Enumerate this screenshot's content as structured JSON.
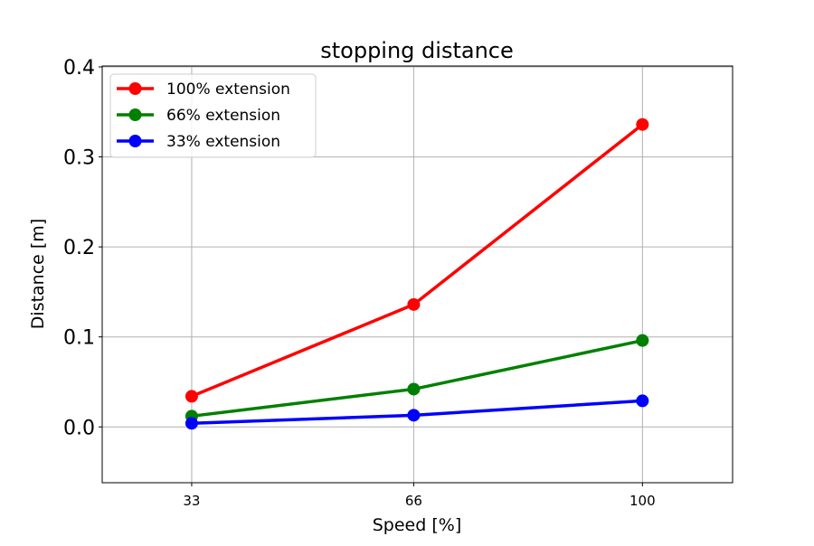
{
  "chart_data": {
    "type": "line",
    "title": "stopping distance",
    "xlabel": "Speed [%]",
    "ylabel": "Distance [m]",
    "x": [
      33,
      66,
      100
    ],
    "xticks": [
      "33",
      "66",
      "100"
    ],
    "yticks": [
      "0.0",
      "0.1",
      "0.2",
      "0.3",
      "0.4"
    ],
    "xlim": [
      19.7,
      113.4
    ],
    "ylim": [
      -0.062,
      0.401
    ],
    "grid": true,
    "legend_position": "upper-left",
    "series": [
      {
        "name": "100% extension",
        "color": "#ff0000",
        "values": [
          0.034,
          0.136,
          0.336
        ]
      },
      {
        "name": "66% extension",
        "color": "#008000",
        "values": [
          0.012,
          0.042,
          0.096
        ]
      },
      {
        "name": "33% extension",
        "color": "#0000ff",
        "values": [
          0.004,
          0.013,
          0.029
        ]
      }
    ]
  }
}
